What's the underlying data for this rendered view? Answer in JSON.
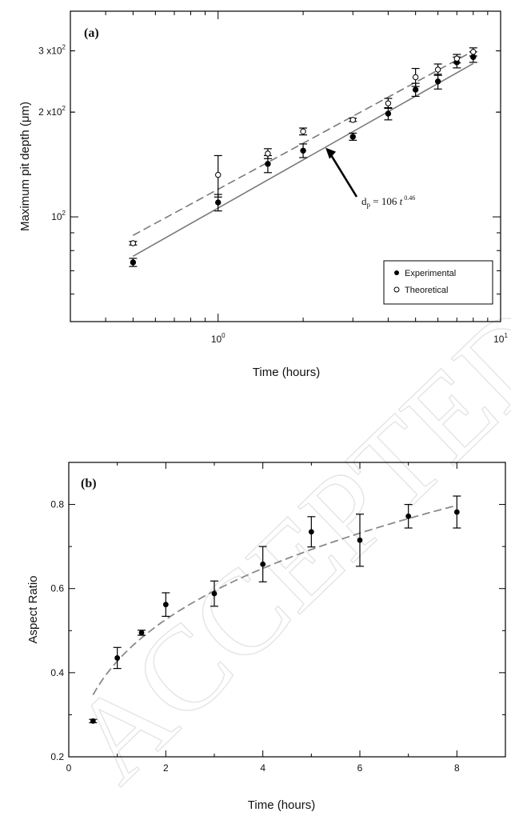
{
  "chart_data": [
    {
      "type": "scatter",
      "panel_label": "(a)",
      "xlabel": "Time (hours)",
      "ylabel": "Maximum pit depth (μm)",
      "xscale": "log",
      "yscale": "log",
      "xlim": [
        0.3,
        10
      ],
      "ylim": [
        50,
        390
      ],
      "x_ticks": [
        {
          "value": 1,
          "base": "10",
          "exp": "0"
        },
        {
          "value": 10,
          "base": "10",
          "exp": "1"
        }
      ],
      "y_ticks": [
        {
          "value": 100,
          "base": "10",
          "exp": "2",
          "prefix": ""
        },
        {
          "value": 200,
          "base": "x10",
          "exp": "2",
          "prefix": "2"
        },
        {
          "value": 300,
          "base": "x10",
          "exp": "2",
          "prefix": "3"
        }
      ],
      "series": [
        {
          "name": "Experimental",
          "marker": "filled-circle",
          "points": [
            {
              "x": 0.5,
              "y": 74,
              "err": 2
            },
            {
              "x": 1.0,
              "y": 110,
              "err": 6
            },
            {
              "x": 1.5,
              "y": 142,
              "err": 8
            },
            {
              "x": 2.0,
              "y": 155,
              "err": 7
            },
            {
              "x": 3.0,
              "y": 170,
              "err": 4
            },
            {
              "x": 4.0,
              "y": 198,
              "err": 8
            },
            {
              "x": 5.0,
              "y": 232,
              "err": 10
            },
            {
              "x": 6.0,
              "y": 245,
              "err": 12
            },
            {
              "x": 7.0,
              "y": 278,
              "err": 10
            },
            {
              "x": 8.0,
              "y": 288,
              "err": 10
            }
          ]
        },
        {
          "name": "Theoretical",
          "marker": "open-circle",
          "points": [
            {
              "x": 0.5,
              "y": 84,
              "err": 1
            },
            {
              "x": 1.0,
              "y": 132,
              "err": 18
            },
            {
              "x": 1.5,
              "y": 152,
              "err": 5
            },
            {
              "x": 2.0,
              "y": 176,
              "err": 4
            },
            {
              "x": 3.0,
              "y": 190,
              "err": 2
            },
            {
              "x": 4.0,
              "y": 212,
              "err": 7
            },
            {
              "x": 5.0,
              "y": 252,
              "err": 15
            },
            {
              "x": 6.0,
              "y": 265,
              "err": 10
            },
            {
              "x": 7.0,
              "y": 285,
              "err": 8
            },
            {
              "x": 8.0,
              "y": 298,
              "err": 8
            }
          ]
        }
      ],
      "fits": [
        {
          "style": "solid",
          "a": 106,
          "b": 0.46,
          "xrange": [
            0.5,
            8
          ]
        },
        {
          "style": "dashed",
          "a": 120,
          "b": 0.44,
          "xrange": [
            0.5,
            8
          ]
        }
      ],
      "annotation": {
        "base": "d",
        "sub": "p",
        "rest": " = 106 ",
        "var": "t",
        "exp": " 0.46",
        "arrow_to": {
          "x": 2.4,
          "y": 158
        }
      },
      "legend": {
        "position": "bottom-right",
        "items": [
          "Experimental",
          "Theoretical"
        ]
      }
    },
    {
      "type": "scatter",
      "panel_label": "(b)",
      "xlabel": "Time (hours)",
      "ylabel": "Aspect  Ratio",
      "xlim": [
        0,
        9
      ],
      "ylim": [
        0.2,
        0.9
      ],
      "x_ticks": [
        "0",
        "2",
        "4",
        "6",
        "8"
      ],
      "y_ticks": [
        "0.2",
        "0.4",
        "0.6",
        "0.8"
      ],
      "points": [
        {
          "x": 0.5,
          "y": 0.285,
          "err": 0.004
        },
        {
          "x": 1.0,
          "y": 0.435,
          "err": 0.025
        },
        {
          "x": 1.5,
          "y": 0.495,
          "err": 0.006
        },
        {
          "x": 2.0,
          "y": 0.562,
          "err": 0.028
        },
        {
          "x": 3.0,
          "y": 0.588,
          "err": 0.03
        },
        {
          "x": 4.0,
          "y": 0.658,
          "err": 0.042
        },
        {
          "x": 5.0,
          "y": 0.735,
          "err": 0.036
        },
        {
          "x": 6.0,
          "y": 0.715,
          "err": 0.062
        },
        {
          "x": 7.0,
          "y": 0.772,
          "err": 0.028
        },
        {
          "x": 8.0,
          "y": 0.782,
          "err": 0.038
        }
      ],
      "fit": {
        "style": "dashed",
        "a": 0.4275,
        "b": 0.3,
        "xrange": [
          0.5,
          8
        ]
      }
    }
  ],
  "watermark": "ACCEPTED MANU"
}
